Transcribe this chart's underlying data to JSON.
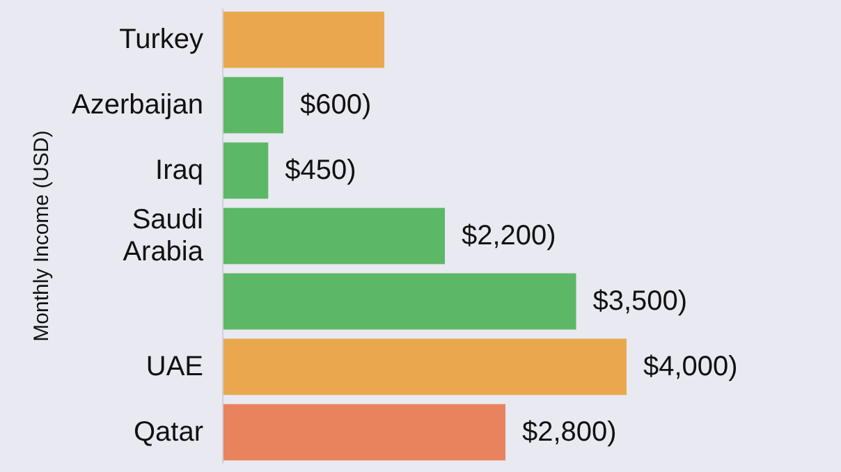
{
  "chart_data": {
    "type": "bar",
    "orientation": "horizontal",
    "ylabel": "Monthly Income (USD)",
    "categories": [
      "Turkey",
      "Azerbaijan",
      "Iraq",
      "Saudi Arabia",
      null,
      "UAE",
      "Qatar"
    ],
    "values": [
      1600,
      600,
      450,
      2200,
      3500,
      4000,
      2800
    ],
    "colors": [
      "#eaa84e",
      "#5cb866",
      "#5cb866",
      "#5cb866",
      "#5cb866",
      "#eaa84e",
      "#e8835e"
    ],
    "value_labels": [
      null,
      "$600)",
      "$450)",
      "$2,200)",
      "$3,500)",
      "$4,000)",
      "$2,800)"
    ]
  }
}
